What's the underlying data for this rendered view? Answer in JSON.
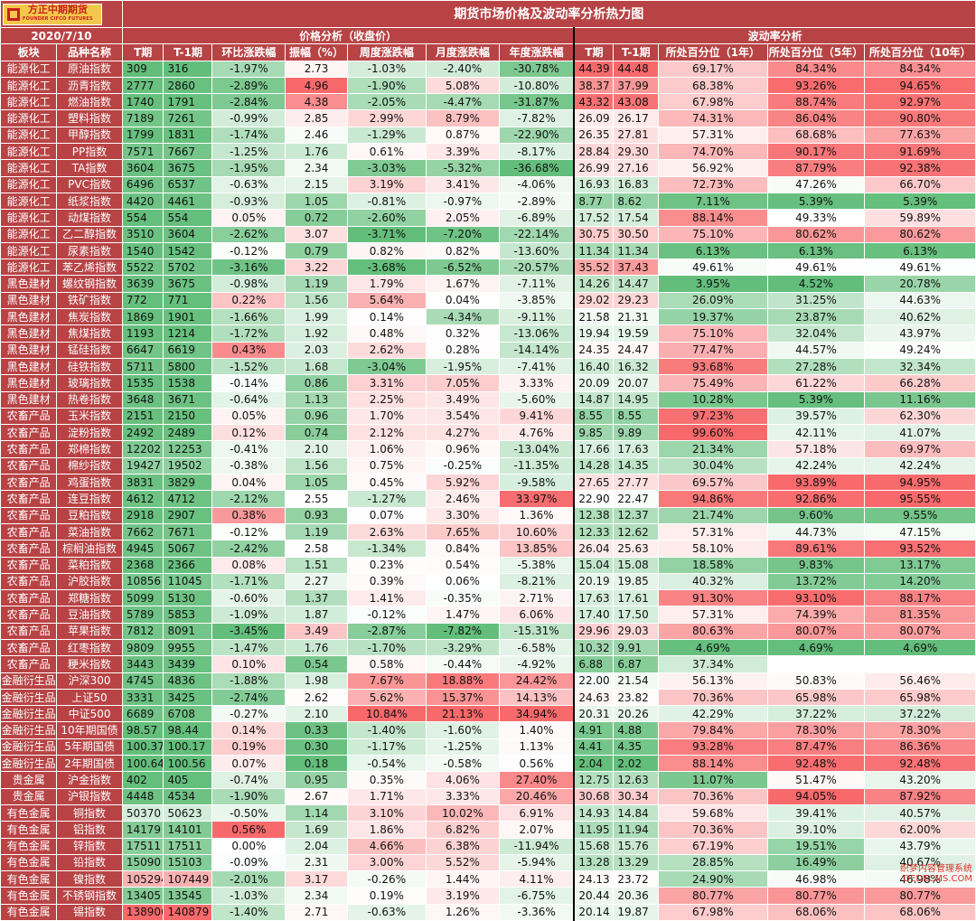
{
  "logo": {
    "cn": "方正中期期货",
    "en": "FOUNDER CIFCO FUTURES"
  },
  "title": "期货市场价格及波动率分析热力图",
  "date": "2020/7/10",
  "group_headers": {
    "price": "价格分析（收盘价）",
    "vol": "波动率分析"
  },
  "columns": [
    "板块",
    "品种名称",
    "T期",
    "T-1期",
    "环比涨跌幅",
    "振幅（%）",
    "周度涨跌幅",
    "月度涨跌幅",
    "年度涨跌幅",
    "T期",
    "T-1期",
    "所处百分位（1年）",
    "所处百分位（5年）",
    "所处百分位（10年）"
  ],
  "colors": {
    "header_bg": "#b84345",
    "positive_max": "#f8696b",
    "negative_max": "#63be7b",
    "neutral": "#ffffff"
  },
  "rows": [
    [
      "能源化工",
      "原油指数",
      "309",
      "316",
      "-1.97%",
      "2.73",
      "-1.03%",
      "-2.40%",
      "-30.78%",
      "44.39",
      "44.48",
      "69.17%",
      "84.34%",
      "84.34%"
    ],
    [
      "能源化工",
      "沥青指数",
      "2777",
      "2860",
      "-2.89%",
      "4.96",
      "-1.90%",
      "5.08%",
      "-10.80%",
      "38.37",
      "37.99",
      "68.38%",
      "93.26%",
      "94.65%"
    ],
    [
      "能源化工",
      "燃油指数",
      "1740",
      "1791",
      "-2.84%",
      "4.38",
      "-2.05%",
      "-4.47%",
      "-31.87%",
      "43.32",
      "43.08",
      "67.98%",
      "88.74%",
      "92.97%"
    ],
    [
      "能源化工",
      "塑料指数",
      "7189",
      "7261",
      "-0.99%",
      "2.85",
      "2.99%",
      "8.79%",
      "-7.82%",
      "26.09",
      "26.17",
      "74.31%",
      "86.04%",
      "90.80%"
    ],
    [
      "能源化工",
      "甲醇指数",
      "1799",
      "1831",
      "-1.74%",
      "2.46",
      "-1.29%",
      "0.87%",
      "-22.90%",
      "26.35",
      "27.81",
      "57.31%",
      "68.68%",
      "77.63%"
    ],
    [
      "能源化工",
      "PP指数",
      "7571",
      "7667",
      "-1.25%",
      "1.76",
      "0.61%",
      "3.39%",
      "-8.17%",
      "28.84",
      "29.30",
      "74.70%",
      "90.17%",
      "91.69%"
    ],
    [
      "能源化工",
      "TA指数",
      "3604",
      "3675",
      "-1.95%",
      "2.34",
      "-3.03%",
      "-5.32%",
      "-36.68%",
      "26.99",
      "27.16",
      "56.92%",
      "87.79%",
      "92.38%"
    ],
    [
      "能源化工",
      "PVC指数",
      "6496",
      "6537",
      "-0.63%",
      "2.15",
      "3.19%",
      "3.41%",
      "-4.06%",
      "16.93",
      "16.83",
      "72.73%",
      "47.26%",
      "66.70%"
    ],
    [
      "能源化工",
      "纸浆指数",
      "4420",
      "4461",
      "-0.93%",
      "1.05",
      "-0.81%",
      "-0.97%",
      "-2.89%",
      "8.77",
      "8.62",
      "7.11%",
      "5.39%",
      "5.39%"
    ],
    [
      "能源化工",
      "动煤指数",
      "554",
      "554",
      "0.05%",
      "0.72",
      "-2.60%",
      "2.05%",
      "-6.89%",
      "17.52",
      "17.54",
      "88.14%",
      "49.33%",
      "59.89%"
    ],
    [
      "能源化工",
      "乙二醇指数",
      "3510",
      "3604",
      "-2.62%",
      "3.07",
      "-3.71%",
      "-7.20%",
      "-22.14%",
      "30.75",
      "30.50",
      "75.10%",
      "80.62%",
      "80.62%"
    ],
    [
      "能源化工",
      "尿素指数",
      "1540",
      "1542",
      "-0.12%",
      "0.79",
      "0.82%",
      "0.82%",
      "-13.60%",
      "11.34",
      "11.34",
      "6.13%",
      "6.13%",
      "6.13%"
    ],
    [
      "能源化工",
      "苯乙烯指数",
      "5522",
      "5702",
      "-3.16%",
      "3.22",
      "-3.68%",
      "-6.52%",
      "-20.57%",
      "35.52",
      "37.43",
      "49.61%",
      "49.61%",
      "49.61%"
    ],
    [
      "黑色建材",
      "螺纹钢指数",
      "3639",
      "3675",
      "-0.98%",
      "1.19",
      "1.79%",
      "1.67%",
      "-7.11%",
      "14.26",
      "14.47",
      "3.95%",
      "4.52%",
      "20.78%"
    ],
    [
      "黑色建材",
      "铁矿指数",
      "772",
      "771",
      "0.22%",
      "1.56",
      "5.64%",
      "0.04%",
      "-3.85%",
      "29.02",
      "29.23",
      "26.09%",
      "31.25%",
      "44.63%"
    ],
    [
      "黑色建材",
      "焦炭指数",
      "1869",
      "1901",
      "-1.66%",
      "1.99",
      "0.14%",
      "-4.34%",
      "-9.11%",
      "21.58",
      "21.31",
      "19.37%",
      "23.87%",
      "40.62%"
    ],
    [
      "黑色建材",
      "焦煤指数",
      "1193",
      "1214",
      "-1.72%",
      "1.92",
      "0.48%",
      "0.32%",
      "-13.06%",
      "19.94",
      "19.59",
      "75.10%",
      "32.04%",
      "43.97%"
    ],
    [
      "黑色建材",
      "锰硅指数",
      "6647",
      "6619",
      "0.43%",
      "2.03",
      "2.62%",
      "0.28%",
      "-14.14%",
      "24.35",
      "24.47",
      "77.47%",
      "44.57%",
      "49.24%"
    ],
    [
      "黑色建材",
      "硅铁指数",
      "5711",
      "5800",
      "-1.52%",
      "1.68",
      "-3.04%",
      "-1.95%",
      "-7.41%",
      "16.40",
      "16.32",
      "93.68%",
      "27.28%",
      "32.34%"
    ],
    [
      "黑色建材",
      "玻璃指数",
      "1535",
      "1538",
      "-0.14%",
      "0.86",
      "3.31%",
      "7.05%",
      "3.33%",
      "20.09",
      "20.07",
      "75.49%",
      "61.22%",
      "66.28%"
    ],
    [
      "黑色建材",
      "热卷指数",
      "3648",
      "3671",
      "-0.64%",
      "1.13",
      "2.25%",
      "3.49%",
      "-5.60%",
      "14.87",
      "14.95",
      "10.28%",
      "5.39%",
      "11.16%"
    ],
    [
      "农畜产品",
      "玉米指数",
      "2151",
      "2150",
      "0.05%",
      "0.96",
      "1.70%",
      "3.54%",
      "9.41%",
      "8.55",
      "8.55",
      "97.23%",
      "39.57%",
      "62.30%"
    ],
    [
      "农畜产品",
      "淀粉指数",
      "2492",
      "2489",
      "0.12%",
      "0.74",
      "2.12%",
      "4.27%",
      "4.76%",
      "9.85",
      "9.89",
      "99.60%",
      "42.11%",
      "41.07%"
    ],
    [
      "农畜产品",
      "郑棉指数",
      "12202",
      "12253",
      "-0.41%",
      "2.10",
      "1.06%",
      "0.96%",
      "-13.04%",
      "17.66",
      "17.63",
      "21.34%",
      "57.18%",
      "69.97%"
    ],
    [
      "农畜产品",
      "棉纱指数",
      "19427",
      "19502",
      "-0.38%",
      "1.56",
      "0.75%",
      "-0.25%",
      "-11.35%",
      "14.28",
      "14.35",
      "30.04%",
      "42.24%",
      "42.24%"
    ],
    [
      "农畜产品",
      "鸡蛋指数",
      "3831",
      "3829",
      "0.04%",
      "1.05",
      "0.45%",
      "5.92%",
      "-9.58%",
      "27.65",
      "27.77",
      "69.57%",
      "93.89%",
      "94.95%"
    ],
    [
      "农畜产品",
      "连豆指数",
      "4612",
      "4712",
      "-2.12%",
      "2.55",
      "-1.27%",
      "2.46%",
      "33.97%",
      "22.90",
      "22.47",
      "94.86%",
      "92.86%",
      "95.55%"
    ],
    [
      "农畜产品",
      "豆粕指数",
      "2918",
      "2907",
      "0.38%",
      "0.93",
      "0.07%",
      "3.30%",
      "1.36%",
      "12.38",
      "12.37",
      "21.74%",
      "9.60%",
      "9.55%"
    ],
    [
      "农畜产品",
      "菜油指数",
      "7662",
      "7671",
      "-0.12%",
      "1.19",
      "2.63%",
      "7.65%",
      "10.60%",
      "12.33",
      "12.62",
      "57.31%",
      "44.73%",
      "47.15%"
    ],
    [
      "农畜产品",
      "棕榈油指数",
      "4945",
      "5067",
      "-2.42%",
      "2.58",
      "-1.34%",
      "0.84%",
      "13.85%",
      "26.04",
      "25.63",
      "58.10%",
      "89.61%",
      "93.52%"
    ],
    [
      "农畜产品",
      "菜粕指数",
      "2368",
      "2366",
      "0.08%",
      "1.51",
      "0.23%",
      "0.54%",
      "-5.38%",
      "15.04",
      "15.08",
      "18.58%",
      "9.83%",
      "13.17%"
    ],
    [
      "农畜产品",
      "沪胶指数",
      "10856",
      "11045",
      "-1.71%",
      "2.27",
      "0.39%",
      "0.06%",
      "-8.21%",
      "20.19",
      "19.85",
      "40.32%",
      "13.72%",
      "14.20%"
    ],
    [
      "农畜产品",
      "郑糖指数",
      "5099",
      "5130",
      "-0.60%",
      "1.37",
      "1.41%",
      "-0.35%",
      "2.71%",
      "17.63",
      "17.61",
      "91.30%",
      "93.10%",
      "88.17%"
    ],
    [
      "农畜产品",
      "豆油指数",
      "5789",
      "5853",
      "-1.09%",
      "1.87",
      "-0.12%",
      "1.47%",
      "6.06%",
      "17.40",
      "17.50",
      "57.31%",
      "74.39%",
      "81.35%"
    ],
    [
      "农畜产品",
      "苹果指数",
      "7812",
      "8091",
      "-3.45%",
      "3.49",
      "-2.87%",
      "-7.82%",
      "-15.31%",
      "29.96",
      "29.03",
      "80.63%",
      "80.07%",
      "80.07%"
    ],
    [
      "农畜产品",
      "红枣指数",
      "9809",
      "9955",
      "-1.47%",
      "1.76",
      "-1.70%",
      "-3.29%",
      "-6.58%",
      "10.32",
      "9.91",
      "4.69%",
      "4.69%",
      "4.69%"
    ],
    [
      "农畜产品",
      "粳米指数",
      "3443",
      "3439",
      "0.10%",
      "0.54",
      "0.58%",
      "-0.44%",
      "-4.92%",
      "6.88",
      "6.87",
      "37.34%",
      "",
      ""
    ],
    [
      "金融衍生品",
      "沪深300",
      "4745",
      "4836",
      "-1.88%",
      "1.98",
      "7.67%",
      "18.88%",
      "24.42%",
      "22.00",
      "21.54",
      "56.13%",
      "50.83%",
      "56.46%"
    ],
    [
      "金融衍生品",
      "上证50",
      "3331",
      "3425",
      "-2.74%",
      "2.62",
      "5.62%",
      "15.37%",
      "14.13%",
      "24.63",
      "23.82",
      "70.36%",
      "65.98%",
      "65.98%"
    ],
    [
      "金融衍生品",
      "中证500",
      "6689",
      "6708",
      "-0.27%",
      "2.10",
      "10.84%",
      "21.13%",
      "34.94%",
      "20.31",
      "20.26",
      "42.29%",
      "37.22%",
      "37.22%"
    ],
    [
      "金融衍生品",
      "10年期国债",
      "98.57",
      "98.44",
      "0.14%",
      "0.33",
      "-1.40%",
      "-1.60%",
      "1.40%",
      "4.91",
      "4.88",
      "79.84%",
      "78.30%",
      "78.30%"
    ],
    [
      "金融衍生品",
      "5年期国债",
      "100.37",
      "100.17",
      "0.19%",
      "0.30",
      "-1.17%",
      "-1.25%",
      "1.13%",
      "4.41",
      "4.35",
      "93.28%",
      "87.47%",
      "86.36%"
    ],
    [
      "金融衍生品",
      "2年期国债",
      "100.64",
      "100.56",
      "0.07%",
      "0.18",
      "-0.54%",
      "-0.58%",
      "0.56%",
      "2.04",
      "2.02",
      "88.14%",
      "92.48%",
      "92.48%"
    ],
    [
      "贵金属",
      "沪金指数",
      "402",
      "405",
      "-0.74%",
      "0.95",
      "0.35%",
      "4.06%",
      "27.40%",
      "12.75",
      "12.63",
      "11.07%",
      "51.47%",
      "43.20%"
    ],
    [
      "贵金属",
      "沪银指数",
      "4448",
      "4534",
      "-1.90%",
      "2.67",
      "1.71%",
      "3.33%",
      "20.46%",
      "30.68",
      "30.34",
      "70.36%",
      "94.05%",
      "87.92%"
    ],
    [
      "有色金属",
      "铜指数",
      "50370",
      "50623",
      "-0.50%",
      "1.14",
      "3.10%",
      "10.02%",
      "6.91%",
      "14.93",
      "14.84",
      "59.68%",
      "39.41%",
      "40.57%"
    ],
    [
      "有色金属",
      "铝指数",
      "14179",
      "14101",
      "0.56%",
      "1.69",
      "1.86%",
      "6.82%",
      "2.07%",
      "11.95",
      "11.94",
      "70.36%",
      "39.10%",
      "62.00%"
    ],
    [
      "有色金属",
      "锌指数",
      "17511",
      "17511",
      "0.00%",
      "2.04",
      "4.66%",
      "6.38%",
      "-11.94%",
      "15.68",
      "15.76",
      "67.19%",
      "19.51%",
      "43.79%"
    ],
    [
      "有色金属",
      "铅指数",
      "15090",
      "15103",
      "-0.09%",
      "2.31",
      "3.00%",
      "5.52%",
      "-5.94%",
      "13.28",
      "13.29",
      "28.85%",
      "16.49%",
      "40.67%"
    ],
    [
      "有色金属",
      "镍指数",
      "105294",
      "107449",
      "-2.01%",
      "3.17",
      "-0.26%",
      "1.44%",
      "4.11%",
      "24.13",
      "23.72",
      "24.90%",
      "46.98%",
      "46.98%"
    ],
    [
      "有色金属",
      "不锈钢指数",
      "13405",
      "13545",
      "-1.03%",
      "2.34",
      "0.19%",
      "3.19%",
      "-6.75%",
      "20.44",
      "20.36",
      "80.77%",
      "80.77%",
      "80.77%"
    ],
    [
      "有色金属",
      "锡指数",
      "138906",
      "140879",
      "-1.40%",
      "2.71",
      "-0.63%",
      "1.26%",
      "-3.36%",
      "20.14",
      "19.87",
      "67.98%",
      "68.06%",
      "68.06%"
    ]
  ],
  "watermark": {
    "line1": "织梦内容管理系统",
    "line2": "DEDECMS.COM"
  }
}
